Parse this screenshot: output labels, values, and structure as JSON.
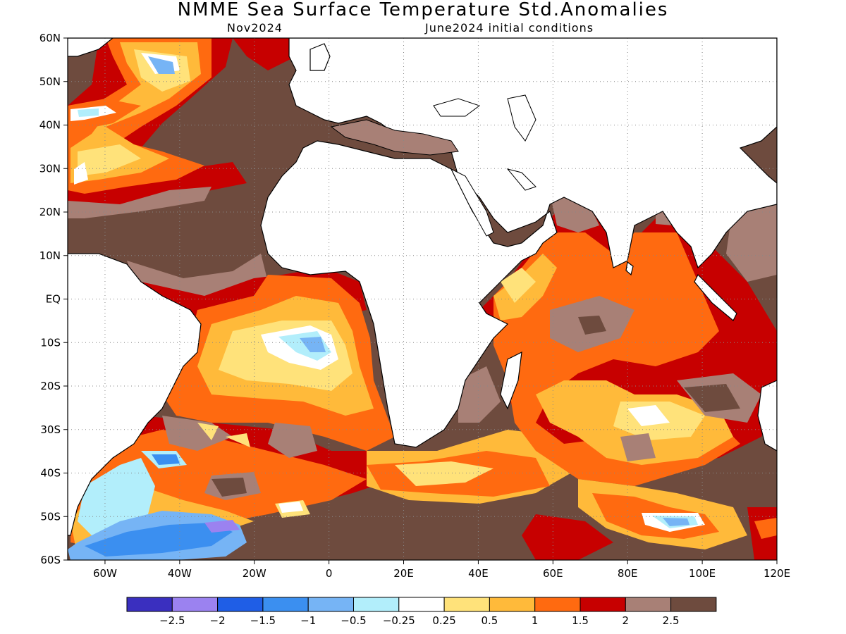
{
  "title": "NMME Sea Surface Temperature Std.Anomalies",
  "subtitle_left": "Nov2024",
  "subtitle_right": "June2024 initial conditions",
  "map": {
    "lon_range": [
      -70,
      120
    ],
    "lat_range": [
      -60,
      60
    ],
    "lon_ticks": [
      {
        "v": -60,
        "t": "60W"
      },
      {
        "v": -40,
        "t": "40W"
      },
      {
        "v": -20,
        "t": "20W"
      },
      {
        "v": 0,
        "t": "0"
      },
      {
        "v": 20,
        "t": "20E"
      },
      {
        "v": 40,
        "t": "40E"
      },
      {
        "v": 60,
        "t": "60E"
      },
      {
        "v": 80,
        "t": "80E"
      },
      {
        "v": 100,
        "t": "100E"
      },
      {
        "v": 120,
        "t": "120E"
      }
    ],
    "lat_ticks": [
      {
        "v": 60,
        "t": "60N"
      },
      {
        "v": 50,
        "t": "50N"
      },
      {
        "v": 40,
        "t": "40N"
      },
      {
        "v": 30,
        "t": "30N"
      },
      {
        "v": 20,
        "t": "20N"
      },
      {
        "v": 10,
        "t": "10N"
      },
      {
        "v": 0,
        "t": "EQ"
      },
      {
        "v": -10,
        "t": "10S"
      },
      {
        "v": -20,
        "t": "20S"
      },
      {
        "v": -30,
        "t": "30S"
      },
      {
        "v": -40,
        "t": "40S"
      },
      {
        "v": -50,
        "t": "50S"
      },
      {
        "v": -60,
        "t": "60S"
      }
    ],
    "grid": "dotted"
  },
  "legend": {
    "colors": [
      "#3a2fbf",
      "#9b82f0",
      "#1f5ee6",
      "#3b8ff0",
      "#76b4f5",
      "#b2eefb",
      "#ffffff",
      "#ffe27a",
      "#ffba3a",
      "#ff6a10",
      "#c70000",
      "#a88076",
      "#6e4b3e"
    ],
    "labels": [
      "-2.5",
      "-2",
      "-1.5",
      "-1",
      "-0.5",
      "-0.25",
      "0.25",
      "0.5",
      "1",
      "1.5",
      "2",
      "2.5"
    ]
  },
  "palette": {
    "land": "#ffffff",
    "ocean_base": "#6e4b3e"
  }
}
